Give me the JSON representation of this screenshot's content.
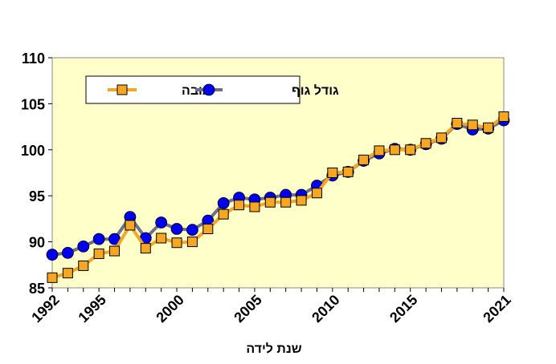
{
  "chart_data": {
    "type": "line",
    "xlabel": "שנת לידה",
    "ylabel": "",
    "title": "",
    "xlim": [
      1992,
      2021
    ],
    "ylim": [
      85,
      110
    ],
    "y_ticks": [
      85,
      90,
      95,
      100,
      105,
      110
    ],
    "x_ticks": [
      1992,
      1995,
      2000,
      2005,
      2010,
      2015,
      2021
    ],
    "x_tick_labels": [
      "1992",
      "1995",
      "2000",
      "2005",
      "2010",
      "2015",
      "2021"
    ],
    "grid": false,
    "plot_background": "#FFFFC9",
    "legend_position": "top-left",
    "x": [
      1992,
      1993,
      1994,
      1995,
      1996,
      1997,
      1998,
      1999,
      2000,
      2001,
      2002,
      2003,
      2004,
      2005,
      2006,
      2007,
      2008,
      2009,
      2010,
      2011,
      2012,
      2013,
      2014,
      2015,
      2016,
      2017,
      2018,
      2019,
      2020,
      2021
    ],
    "series": [
      {
        "name": "גובה",
        "marker": "square",
        "line_color": "#F5A623",
        "marker_color": "#F5A623",
        "values": [
          86.1,
          86.6,
          87.4,
          88.7,
          89.0,
          91.8,
          89.3,
          90.4,
          89.9,
          90.0,
          91.4,
          93.0,
          94.0,
          93.8,
          94.3,
          94.3,
          94.5,
          95.3,
          97.5,
          97.6,
          98.9,
          99.9,
          100.0,
          100.0,
          100.7,
          101.3,
          102.9,
          102.7,
          102.4,
          103.6
        ]
      },
      {
        "name": "גודל גוף",
        "marker": "circle",
        "line_color": "#6E6E90",
        "marker_color": "#0000EE",
        "values": [
          88.6,
          88.8,
          89.5,
          90.3,
          90.3,
          92.7,
          90.4,
          92.1,
          91.4,
          91.3,
          92.3,
          94.2,
          94.8,
          94.6,
          94.8,
          95.1,
          95.1,
          96.1,
          97.2,
          97.6,
          98.8,
          99.6,
          100.1,
          100.0,
          100.6,
          101.2,
          102.8,
          102.2,
          102.3,
          103.2
        ]
      }
    ]
  }
}
